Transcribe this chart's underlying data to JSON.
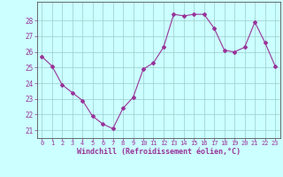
{
  "x": [
    0,
    1,
    2,
    3,
    4,
    5,
    6,
    7,
    8,
    9,
    10,
    11,
    12,
    13,
    14,
    15,
    16,
    17,
    18,
    19,
    20,
    21,
    22,
    23
  ],
  "y": [
    25.7,
    25.1,
    23.9,
    23.4,
    22.9,
    21.9,
    21.4,
    21.1,
    22.4,
    23.1,
    24.9,
    25.3,
    26.3,
    28.4,
    28.3,
    28.4,
    28.4,
    27.5,
    26.1,
    26.0,
    26.3,
    27.9,
    26.6,
    25.1
  ],
  "line_color": "#993399",
  "marker": "D",
  "marker_size": 2.0,
  "bg_color": "#ccffff",
  "grid_color": "#99cccc",
  "xlabel": "Windchill (Refroidissement éolien,°C)",
  "xlabel_color": "#993399",
  "tick_color": "#993399",
  "ylim": [
    20.5,
    29.2
  ],
  "yticks": [
    21,
    22,
    23,
    24,
    25,
    26,
    27,
    28
  ],
  "xticks": [
    0,
    1,
    2,
    3,
    4,
    5,
    6,
    7,
    8,
    9,
    10,
    11,
    12,
    13,
    14,
    15,
    16,
    17,
    18,
    19,
    20,
    21,
    22,
    23
  ],
  "spine_color": "#555555",
  "line_width": 0.8,
  "xlabel_fontsize": 6.0,
  "ytick_fontsize": 5.5,
  "xtick_fontsize": 5.0
}
